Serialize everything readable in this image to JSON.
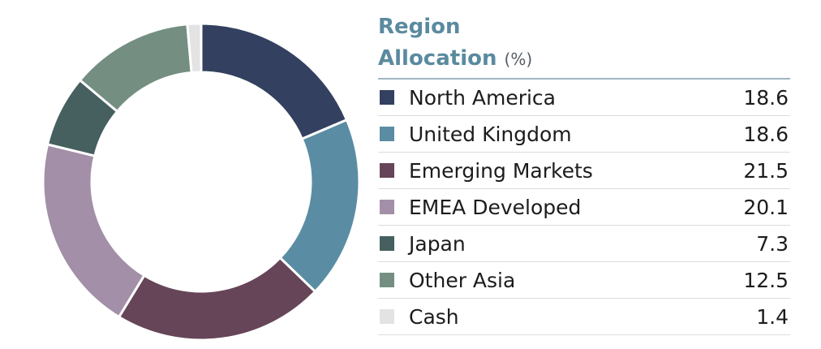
{
  "chart_data": {
    "type": "pie",
    "title": "Region Allocation",
    "title_line1": "Region",
    "title_line2": "Allocation",
    "unit": "(%)",
    "legend_placement": "right",
    "donut": true,
    "categories": [
      "North America",
      "United Kingdom",
      "Emerging Markets",
      "EMEA Developed",
      "Japan",
      "Other Asia",
      "Cash"
    ],
    "values": [
      18.6,
      18.6,
      21.5,
      20.1,
      7.3,
      12.5,
      1.4
    ],
    "value_labels": [
      "18.6",
      "18.6",
      "21.5",
      "20.1",
      "7.3",
      "12.5",
      "1.4"
    ],
    "colors": [
      "#33405f",
      "#5a8da3",
      "#664558",
      "#a38fa8",
      "#465f5f",
      "#748f82",
      "#e3e3e3"
    ]
  }
}
